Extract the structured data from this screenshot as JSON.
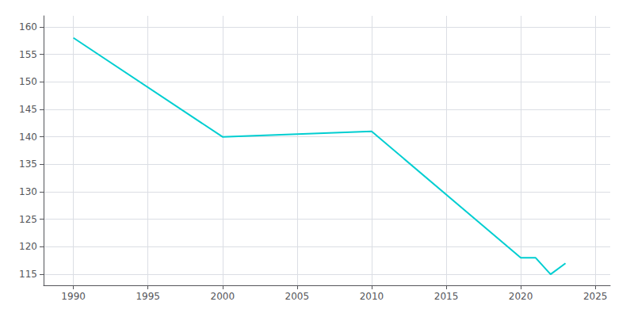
{
  "chart_data": {
    "type": "line",
    "x": [
      1990,
      2000,
      2010,
      2020,
      2021,
      2022,
      2023
    ],
    "values": [
      158,
      140,
      141,
      118,
      118,
      115,
      117
    ],
    "color": "#00CED1",
    "xlim": [
      1988,
      2026
    ],
    "xticks": [
      1990,
      1995,
      2000,
      2005,
      2010,
      2015,
      2020,
      2025
    ],
    "ylim": [
      113,
      162
    ],
    "yticks": [
      115,
      120,
      125,
      130,
      135,
      140,
      145,
      150,
      155,
      160
    ],
    "grid": true
  }
}
